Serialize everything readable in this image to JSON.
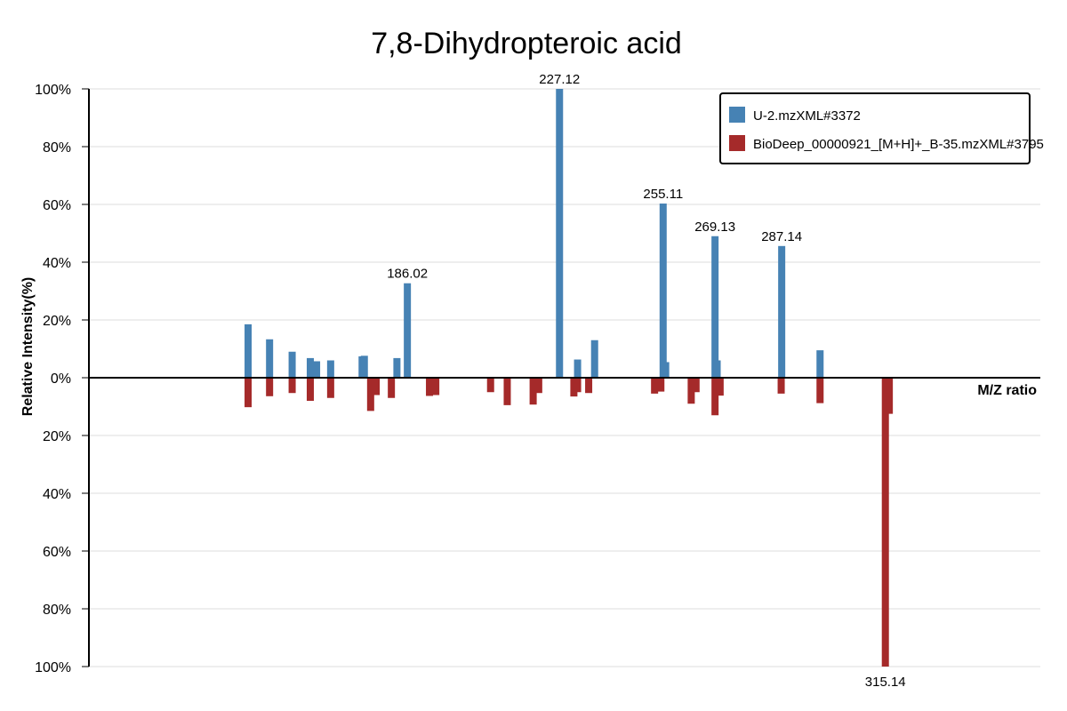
{
  "chart_data": {
    "type": "bar",
    "title": "7,8-Dihydropteroic acid",
    "xlabel": "M/Z ratio",
    "ylabel": "Relative Intensity(%)",
    "ylim": [
      -100,
      100
    ],
    "y_ticks": [
      "100%",
      "80%",
      "60%",
      "40%",
      "20%",
      "0%",
      "20%",
      "40%",
      "60%",
      "80%",
      "100%"
    ],
    "grid": true,
    "legend_position": "top-right",
    "series": [
      {
        "name": "U-2.mzXML#3372",
        "color": "#4682b4",
        "direction": "up",
        "points": [
          {
            "mz": 143.0,
            "intensity": 18.5
          },
          {
            "mz": 148.8,
            "intensity": 13.3
          },
          {
            "mz": 154.9,
            "intensity": 9.0
          },
          {
            "mz": 159.8,
            "intensity": 6.8
          },
          {
            "mz": 161.5,
            "intensity": 5.7
          },
          {
            "mz": 165.3,
            "intensity": 6.0
          },
          {
            "mz": 173.8,
            "intensity": 7.4
          },
          {
            "mz": 174.4,
            "intensity": 7.6
          },
          {
            "mz": 183.2,
            "intensity": 6.8
          },
          {
            "mz": 186.02,
            "intensity": 32.7,
            "label": "186.02"
          },
          {
            "mz": 227.12,
            "intensity": 100.0,
            "label": "227.12"
          },
          {
            "mz": 232.0,
            "intensity": 6.3
          },
          {
            "mz": 236.6,
            "intensity": 13.0
          },
          {
            "mz": 255.11,
            "intensity": 60.3,
            "label": "255.11"
          },
          {
            "mz": 255.8,
            "intensity": 5.4
          },
          {
            "mz": 269.13,
            "intensity": 49.0,
            "label": "269.13"
          },
          {
            "mz": 269.7,
            "intensity": 6.0
          },
          {
            "mz": 287.14,
            "intensity": 45.6,
            "label": "287.14"
          },
          {
            "mz": 297.5,
            "intensity": 9.5
          }
        ]
      },
      {
        "name": "BioDeep_00000921_[M+H]+_B-35.mzXML#3795",
        "color": "#a52a2a",
        "direction": "down",
        "points": [
          {
            "mz": 143.0,
            "intensity": 10.2
          },
          {
            "mz": 148.8,
            "intensity": 6.4
          },
          {
            "mz": 154.9,
            "intensity": 5.3
          },
          {
            "mz": 159.8,
            "intensity": 8.0
          },
          {
            "mz": 165.3,
            "intensity": 7.0
          },
          {
            "mz": 176.1,
            "intensity": 11.5
          },
          {
            "mz": 177.6,
            "intensity": 6.0
          },
          {
            "mz": 181.7,
            "intensity": 7.0
          },
          {
            "mz": 192.0,
            "intensity": 6.3
          },
          {
            "mz": 193.7,
            "intensity": 6.0
          },
          {
            "mz": 208.5,
            "intensity": 5.0
          },
          {
            "mz": 213.0,
            "intensity": 9.5
          },
          {
            "mz": 220.0,
            "intensity": 9.3
          },
          {
            "mz": 221.5,
            "intensity": 5.3
          },
          {
            "mz": 231.0,
            "intensity": 6.5
          },
          {
            "mz": 232.0,
            "intensity": 5.0
          },
          {
            "mz": 235.0,
            "intensity": 5.3
          },
          {
            "mz": 252.8,
            "intensity": 5.5
          },
          {
            "mz": 254.5,
            "intensity": 4.8
          },
          {
            "mz": 262.7,
            "intensity": 9.0
          },
          {
            "mz": 264.0,
            "intensity": 5.0
          },
          {
            "mz": 269.13,
            "intensity": 13.0
          },
          {
            "mz": 270.5,
            "intensity": 6.2
          },
          {
            "mz": 287.0,
            "intensity": 5.5
          },
          {
            "mz": 297.5,
            "intensity": 8.8
          },
          {
            "mz": 315.14,
            "intensity": 100.0,
            "label": "315.14"
          },
          {
            "mz": 316.2,
            "intensity": 12.5
          }
        ]
      }
    ]
  }
}
